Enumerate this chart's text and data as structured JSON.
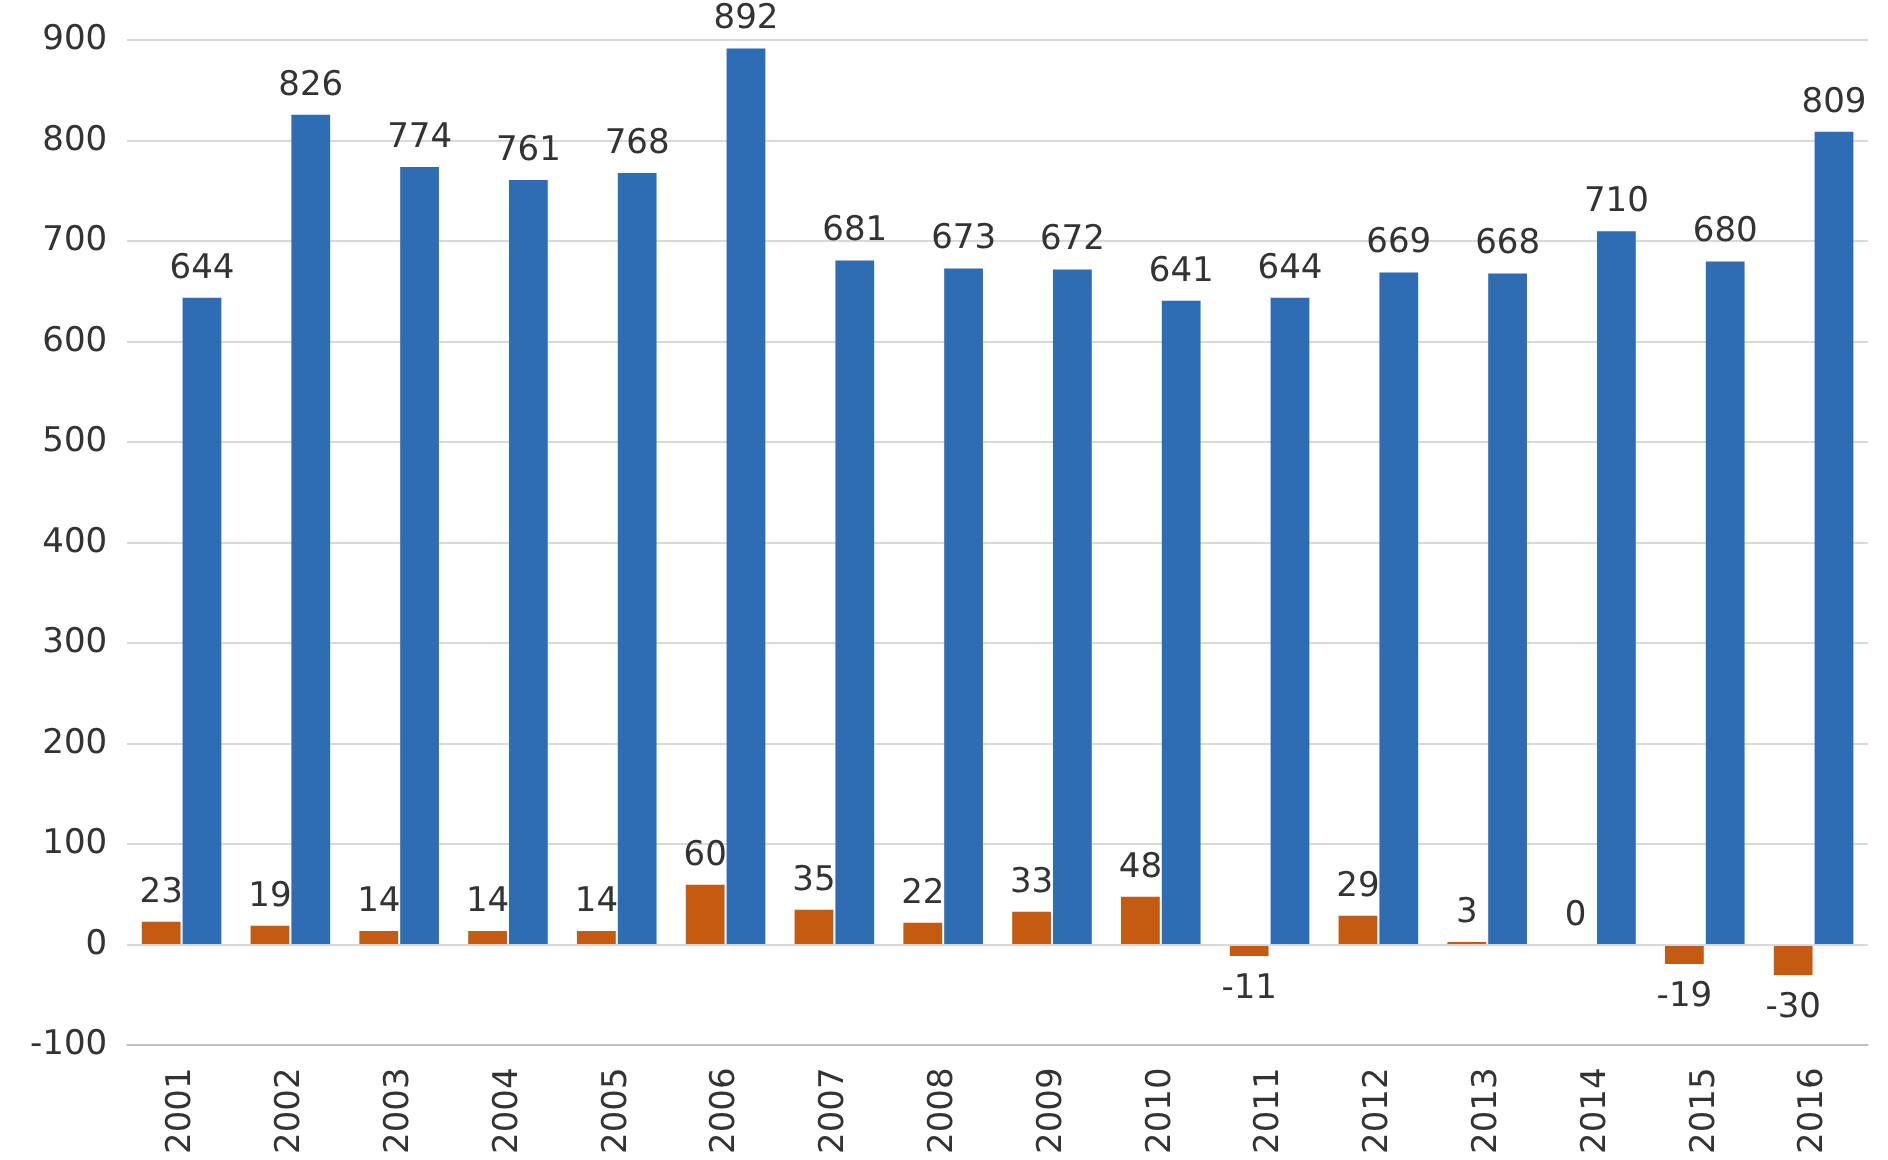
{
  "chart_data": {
    "type": "bar",
    "categories": [
      "2001",
      "2002",
      "2003",
      "2004",
      "2005",
      "2006",
      "2007",
      "2008",
      "2009",
      "2010",
      "2011",
      "2012",
      "2013",
      "2014",
      "2015",
      "2016"
    ],
    "series": [
      {
        "color": "#c55a11",
        "values": [
          23,
          19,
          14,
          14,
          14,
          60,
          35,
          22,
          33,
          48,
          -11,
          29,
          3,
          0,
          -19,
          -30
        ]
      },
      {
        "color": "#2e6db4",
        "values": [
          644,
          826,
          774,
          761,
          768,
          892,
          681,
          673,
          672,
          641,
          644,
          669,
          668,
          710,
          680,
          809
        ]
      }
    ],
    "ylim": [
      -100,
      900
    ],
    "yticks": [
      -100,
      0,
      100,
      200,
      300,
      400,
      500,
      600,
      700,
      800,
      900
    ],
    "grid": "y",
    "legend": false,
    "data_labels": true
  }
}
